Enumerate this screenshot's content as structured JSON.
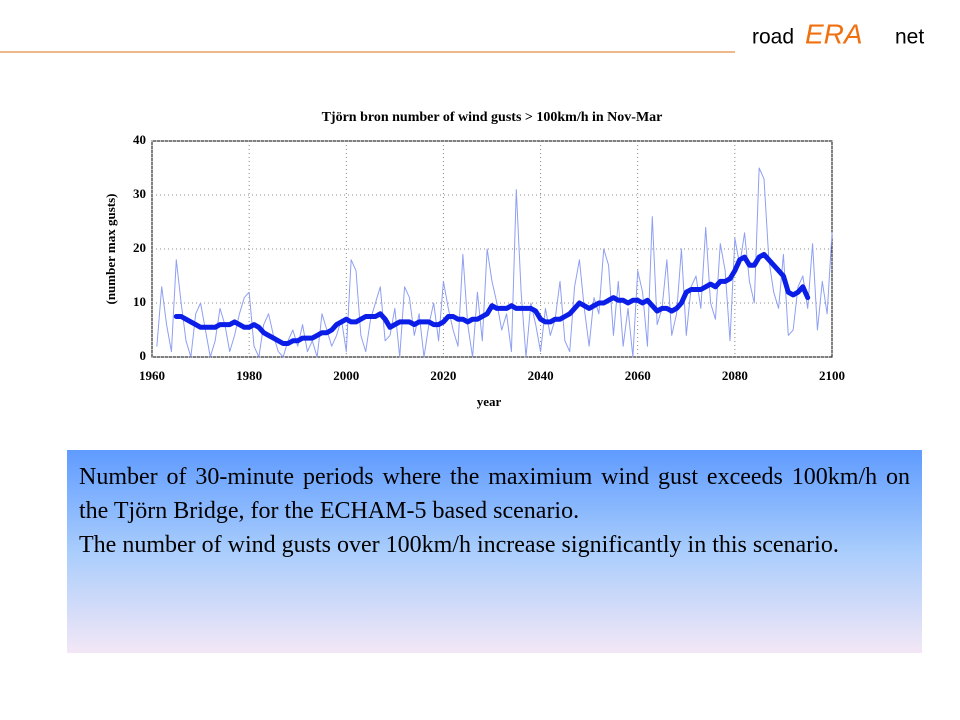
{
  "logo": {
    "left": "road",
    "middle": "ERA",
    "right": "net"
  },
  "chart_data": {
    "type": "line",
    "title": "Tjörn bron number of wind gusts > 100km/h in Nov-Mar",
    "xlabel": "year",
    "ylabel": "(number max gusts)",
    "xlim": [
      1960,
      2100
    ],
    "xticks": [
      1960,
      1980,
      2000,
      2020,
      2040,
      2060,
      2080,
      2100
    ],
    "ylim": [
      0,
      40
    ],
    "yticks": [
      0,
      10,
      20,
      30,
      40
    ],
    "grid": true,
    "series": [
      {
        "color": "#8f9ff2",
        "width": 1,
        "x": [
          1961,
          1962,
          1963,
          1964,
          1965,
          1966,
          1967,
          1968,
          1969,
          1970,
          1971,
          1972,
          1973,
          1974,
          1975,
          1976,
          1977,
          1978,
          1979,
          1980,
          1981,
          1982,
          1983,
          1984,
          1985,
          1986,
          1987,
          1988,
          1989,
          1990,
          1991,
          1992,
          1993,
          1994,
          1995,
          1996,
          1997,
          1998,
          1999,
          2000,
          2001,
          2002,
          2003,
          2004,
          2005,
          2006,
          2007,
          2008,
          2009,
          2010,
          2011,
          2012,
          2013,
          2014,
          2015,
          2016,
          2017,
          2018,
          2019,
          2020,
          2021,
          2022,
          2023,
          2024,
          2025,
          2026,
          2027,
          2028,
          2029,
          2030,
          2031,
          2032,
          2033,
          2034,
          2035,
          2036,
          2037,
          2038,
          2039,
          2040,
          2041,
          2042,
          2043,
          2044,
          2045,
          2046,
          2047,
          2048,
          2049,
          2050,
          2051,
          2052,
          2053,
          2054,
          2055,
          2056,
          2057,
          2058,
          2059,
          2060,
          2061,
          2062,
          2063,
          2064,
          2065,
          2066,
          2067,
          2068,
          2069,
          2070,
          2071,
          2072,
          2073,
          2074,
          2075,
          2076,
          2077,
          2078,
          2079,
          2080,
          2081,
          2082,
          2083,
          2084,
          2085,
          2086,
          2087,
          2088,
          2089,
          2090,
          2091,
          2092,
          2093,
          2094,
          2095,
          2096,
          2097,
          2098,
          2099,
          2100
        ],
        "values": [
          2,
          13,
          6,
          1,
          18,
          10,
          3,
          0,
          8,
          10,
          5,
          0,
          3,
          9,
          6,
          1,
          4,
          8,
          11,
          12,
          2,
          0,
          6,
          8,
          4,
          1,
          0,
          3,
          5,
          2,
          6,
          1,
          3,
          0,
          8,
          5,
          2,
          4,
          7,
          1,
          18,
          16,
          4,
          1,
          7,
          10,
          13,
          3,
          4,
          9,
          0,
          13,
          11,
          4,
          8,
          0,
          6,
          10,
          3,
          14,
          9,
          5,
          2,
          19,
          6,
          0,
          12,
          3,
          20,
          14,
          10,
          5,
          8,
          1,
          31,
          12,
          0,
          10,
          6,
          1,
          9,
          4,
          7,
          14,
          3,
          1,
          13,
          18,
          9,
          2,
          11,
          8,
          20,
          17,
          4,
          14,
          2,
          9,
          0,
          16,
          12,
          2,
          26,
          6,
          9,
          18,
          4,
          8,
          20,
          4,
          13,
          15,
          9,
          24,
          10,
          7,
          21,
          16,
          3,
          22,
          17,
          23,
          14,
          10,
          35,
          33,
          18,
          12,
          9,
          19,
          4,
          5,
          13,
          15,
          9,
          21,
          5,
          14,
          8,
          23
        ]
      },
      {
        "color": "#0a1ee8",
        "width": 5,
        "x": [
          1965,
          1966,
          1967,
          1968,
          1969,
          1970,
          1971,
          1972,
          1973,
          1974,
          1975,
          1976,
          1977,
          1978,
          1979,
          1980,
          1981,
          1982,
          1983,
          1984,
          1985,
          1986,
          1987,
          1988,
          1989,
          1990,
          1991,
          1992,
          1993,
          1994,
          1995,
          1996,
          1997,
          1998,
          1999,
          2000,
          2001,
          2002,
          2003,
          2004,
          2005,
          2006,
          2007,
          2008,
          2009,
          2010,
          2011,
          2012,
          2013,
          2014,
          2015,
          2016,
          2017,
          2018,
          2019,
          2020,
          2021,
          2022,
          2023,
          2024,
          2025,
          2026,
          2027,
          2028,
          2029,
          2030,
          2031,
          2032,
          2033,
          2034,
          2035,
          2036,
          2037,
          2038,
          2039,
          2040,
          2041,
          2042,
          2043,
          2044,
          2045,
          2046,
          2047,
          2048,
          2049,
          2050,
          2051,
          2052,
          2053,
          2054,
          2055,
          2056,
          2057,
          2058,
          2059,
          2060,
          2061,
          2062,
          2063,
          2064,
          2065,
          2066,
          2067,
          2068,
          2069,
          2070,
          2071,
          2072,
          2073,
          2074,
          2075,
          2076,
          2077,
          2078,
          2079,
          2080,
          2081,
          2082,
          2083,
          2084,
          2085,
          2086,
          2087,
          2088,
          2089,
          2090,
          2091,
          2092,
          2093,
          2094,
          2095
        ],
        "values": [
          7.5,
          7.5,
          7,
          6.5,
          6,
          5.5,
          5.5,
          5.5,
          5.5,
          6,
          6,
          6,
          6.5,
          6,
          5.5,
          5.5,
          6,
          5.5,
          4.5,
          4,
          3.5,
          3,
          2.5,
          2.5,
          3,
          3,
          3.5,
          3.5,
          3.5,
          4,
          4.5,
          4.5,
          5,
          6,
          6.5,
          7,
          6.5,
          6.5,
          7,
          7.5,
          7.5,
          7.5,
          8,
          7,
          5.5,
          6,
          6.5,
          6.5,
          6.5,
          6,
          6.5,
          6.5,
          6.5,
          6,
          6,
          6.5,
          7.5,
          7.5,
          7,
          7,
          6.5,
          7,
          7,
          7.5,
          8,
          9.5,
          9,
          9,
          9,
          9.5,
          9,
          9,
          9,
          9,
          8.5,
          7,
          6.5,
          6.5,
          7,
          7,
          7.5,
          8,
          9,
          10,
          9.5,
          9,
          9.5,
          10,
          10,
          10.5,
          11,
          10.5,
          10.5,
          10,
          10.5,
          10.5,
          10,
          10.5,
          9.5,
          8.5,
          9,
          9,
          8.5,
          9,
          10,
          12,
          12.5,
          12.5,
          12.5,
          13,
          13.5,
          13,
          14,
          14,
          14.5,
          16,
          18,
          18.5,
          17,
          17,
          18.5,
          19,
          18,
          17,
          16,
          15,
          12,
          11.5,
          12,
          13,
          11
        ]
      }
    ]
  },
  "caption": [
    "Number of 30-minute periods where the maximium wind gust exceeds 100km/h on the Tjörn Bridge, for the ECHAM-5 based scenario.",
    "The number of wind gusts over 100km/h increase significantly in this scenario."
  ]
}
